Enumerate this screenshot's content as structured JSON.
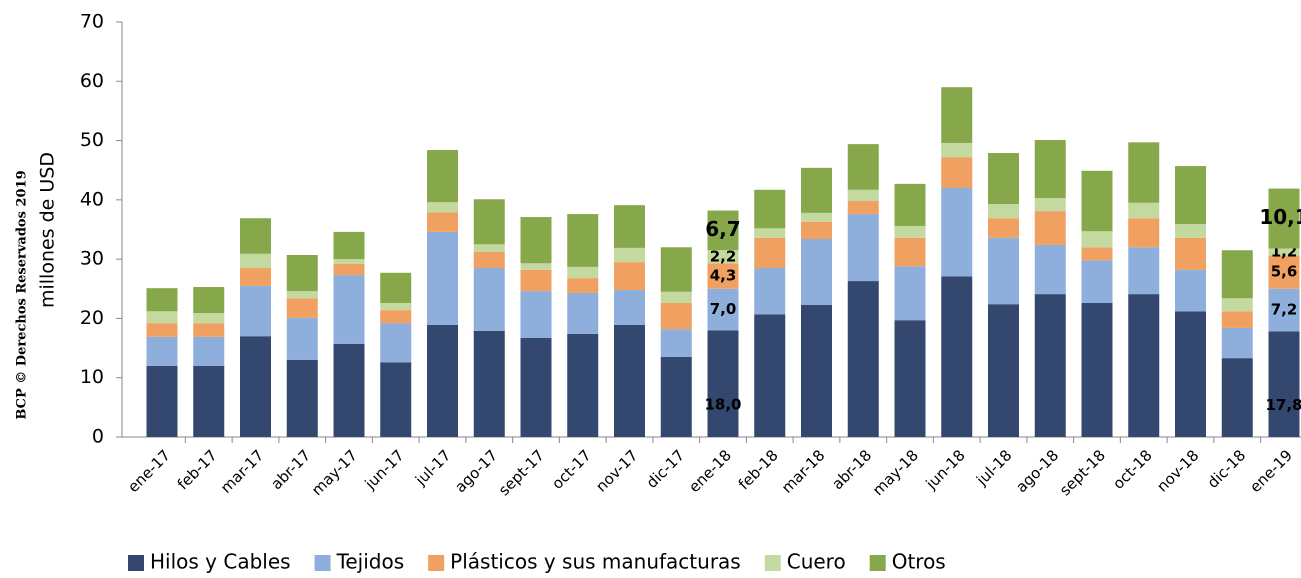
{
  "chart_data": {
    "type": "stacked_bar",
    "y_label": "millones de  USD",
    "side_note": "BCP © Derechos Reservados 2019",
    "categories": [
      "ene-17",
      "feb-17",
      "mar-17",
      "abr-17",
      "may-17",
      "jun-17",
      "jul-17",
      "ago-17",
      "sept-17",
      "oct-17",
      "nov-17",
      "dic-17",
      "ene-18",
      "feb-18",
      "mar-18",
      "abr-18",
      "may-18",
      "jun-18",
      "jul-18",
      "ago-18",
      "sept-18",
      "oct-18",
      "nov-18",
      "dic-18",
      "ene-19"
    ],
    "series": [
      {
        "name": "Hilos y Cables",
        "color": "#34476f",
        "values": [
          12.0,
          12.0,
          17.0,
          13.0,
          15.7,
          12.6,
          18.9,
          17.9,
          16.7,
          17.4,
          18.9,
          13.5,
          18.0,
          20.7,
          22.3,
          26.3,
          19.7,
          27.1,
          22.4,
          24.1,
          22.6,
          24.1,
          21.2,
          13.3,
          17.8
        ],
        "value_labels": [
          null,
          null,
          null,
          null,
          null,
          null,
          null,
          null,
          null,
          null,
          null,
          null,
          "18,0",
          null,
          null,
          null,
          null,
          null,
          null,
          null,
          null,
          null,
          null,
          null,
          "17,8"
        ]
      },
      {
        "name": "Tejidos",
        "color": "#8eaedb",
        "values": [
          4.9,
          4.9,
          8.5,
          7.1,
          11.6,
          6.6,
          15.7,
          10.6,
          7.9,
          6.9,
          5.9,
          4.7,
          7.0,
          7.8,
          11.1,
          11.3,
          9.1,
          14.9,
          11.2,
          8.3,
          7.2,
          7.9,
          7.0,
          5.1,
          7.2
        ],
        "value_labels": [
          null,
          null,
          null,
          null,
          null,
          null,
          null,
          null,
          null,
          null,
          null,
          null,
          "7,0",
          null,
          null,
          null,
          null,
          null,
          null,
          null,
          null,
          null,
          null,
          null,
          "7,2"
        ]
      },
      {
        "name": "Plásticos y sus manufacturas",
        "color": "#f0a060",
        "values": [
          2.3,
          2.3,
          3.0,
          3.3,
          1.9,
          2.2,
          3.3,
          2.7,
          3.6,
          2.5,
          4.7,
          4.4,
          4.3,
          5.1,
          2.9,
          2.2,
          4.8,
          5.2,
          3.3,
          5.7,
          2.2,
          4.9,
          5.4,
          2.8,
          5.6
        ],
        "value_labels": [
          null,
          null,
          null,
          null,
          null,
          null,
          null,
          null,
          null,
          null,
          null,
          null,
          "4,3",
          null,
          null,
          null,
          null,
          null,
          null,
          null,
          null,
          null,
          null,
          null,
          "5,6"
        ]
      },
      {
        "name": "Cuero",
        "color": "#c4d9a0",
        "values": [
          2.0,
          1.7,
          2.4,
          1.2,
          0.8,
          1.2,
          1.7,
          1.3,
          1.1,
          1.9,
          2.4,
          1.9,
          2.2,
          1.6,
          1.5,
          1.9,
          2.0,
          2.4,
          2.4,
          2.2,
          2.7,
          2.6,
          2.3,
          2.2,
          1.2
        ],
        "value_labels": [
          null,
          null,
          null,
          null,
          null,
          null,
          null,
          null,
          null,
          null,
          null,
          null,
          "2,2",
          null,
          null,
          null,
          null,
          null,
          null,
          null,
          null,
          null,
          null,
          null,
          "1,2"
        ]
      },
      {
        "name": "Otros",
        "color": "#86a84a",
        "values": [
          3.9,
          4.4,
          6.0,
          6.1,
          4.6,
          5.1,
          8.8,
          7.6,
          7.8,
          8.9,
          7.2,
          7.5,
          6.7,
          6.5,
          7.6,
          7.7,
          7.1,
          9.4,
          8.6,
          9.8,
          10.2,
          10.2,
          9.8,
          8.1,
          10.1
        ],
        "value_labels": [
          null,
          null,
          null,
          null,
          null,
          null,
          null,
          null,
          null,
          null,
          null,
          null,
          "6,7",
          null,
          null,
          null,
          null,
          null,
          null,
          null,
          null,
          null,
          null,
          null,
          "10,1"
        ]
      }
    ],
    "ylim": [
      0,
      70
    ],
    "yticks": [
      0,
      10,
      20,
      30,
      40,
      50,
      60,
      70
    ],
    "legend": "bottom"
  }
}
